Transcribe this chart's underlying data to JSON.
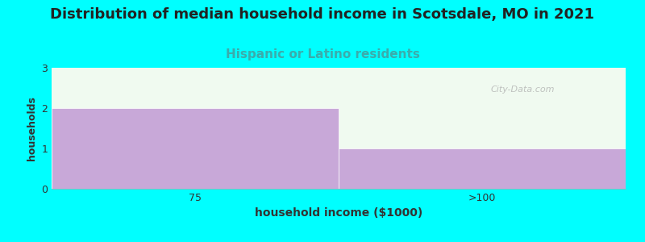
{
  "title": "Distribution of median household income in Scotsdale, MO in 2021",
  "subtitle": "Hispanic or Latino residents",
  "xlabel": "household income ($1000)",
  "ylabel": "households",
  "categories": [
    "75",
    ">100"
  ],
  "values": [
    2,
    1
  ],
  "bar_color": "#C8A8D8",
  "background_color": "#00FFFF",
  "plot_bg_color": "#F0FAF0",
  "ylim": [
    0,
    3
  ],
  "yticks": [
    0,
    1,
    2,
    3
  ],
  "title_fontsize": 13,
  "title_color": "#222222",
  "subtitle_color": "#3AACAC",
  "subtitle_fontsize": 11,
  "xlabel_fontsize": 10,
  "ylabel_fontsize": 9,
  "tick_fontsize": 9,
  "watermark": "City-Data.com"
}
